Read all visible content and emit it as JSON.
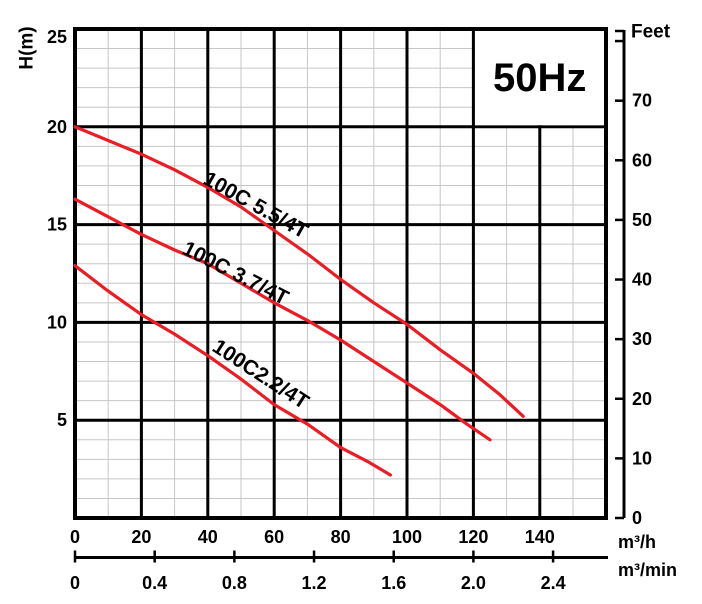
{
  "frequency_badge": {
    "label": "50Hz",
    "color": "#176aa5"
  },
  "axes": {
    "left": {
      "title": "H(m)",
      "ticks": [
        25,
        20,
        15,
        10,
        5
      ]
    },
    "right": {
      "title": "Feet",
      "ticks": [
        70,
        60,
        50,
        40,
        30,
        20,
        10,
        0
      ],
      "unlabeled_tick_feet": 80
    },
    "bottom_primary": {
      "unit": "m³/h",
      "ticks": [
        0,
        20,
        40,
        60,
        80,
        100,
        120,
        140
      ]
    },
    "bottom_secondary": {
      "unit": "m³/min",
      "ticks": [
        "0",
        "0.4",
        "0.8",
        "1.2",
        "1.6",
        "2.0",
        "2.4"
      ]
    }
  },
  "chart_data": {
    "type": "line",
    "title": "",
    "xlabel": "m³/h",
    "ylabel": "H(m)",
    "right_axis_label": "Feet",
    "xlim": [
      0,
      160
    ],
    "ylim": [
      0,
      25
    ],
    "right_ylim_feet": [
      0,
      82
    ],
    "secondary_x_unit": "m³/min",
    "secondary_x_ratio_note": "1 m³/min = 60 m³/h",
    "grid": {
      "x_major": 20,
      "x_minor": 10,
      "y_major": 5,
      "y_minor": 1,
      "on": true
    },
    "annotation": "50Hz",
    "curve_color": "#ec1c24",
    "series": [
      {
        "name": "100C 5.5/4T",
        "points": [
          [
            0,
            20
          ],
          [
            10,
            19.3
          ],
          [
            20,
            18.6
          ],
          [
            30,
            17.8
          ],
          [
            40,
            16.9
          ],
          [
            50,
            15.9
          ],
          [
            60,
            14.7
          ],
          [
            70,
            13.5
          ],
          [
            80,
            12.2
          ],
          [
            90,
            11.0
          ],
          [
            100,
            9.9
          ],
          [
            110,
            8.6
          ],
          [
            120,
            7.4
          ],
          [
            128,
            6.3
          ],
          [
            135,
            5.2
          ]
        ]
      },
      {
        "name": "100C 3.7/4T",
        "points": [
          [
            0,
            16.3
          ],
          [
            10,
            15.4
          ],
          [
            20,
            14.5
          ],
          [
            30,
            13.7
          ],
          [
            40,
            13.0
          ],
          [
            50,
            12.0
          ],
          [
            60,
            11.0
          ],
          [
            70,
            10.1
          ],
          [
            80,
            9.1
          ],
          [
            90,
            8.0
          ],
          [
            100,
            6.9
          ],
          [
            110,
            5.8
          ],
          [
            118,
            4.8
          ],
          [
            125,
            4.0
          ]
        ]
      },
      {
        "name": "100C2.2/4T",
        "points": [
          [
            0,
            12.9
          ],
          [
            10,
            11.6
          ],
          [
            20,
            10.4
          ],
          [
            30,
            9.4
          ],
          [
            40,
            8.3
          ],
          [
            50,
            7.1
          ],
          [
            60,
            5.8
          ],
          [
            70,
            4.8
          ],
          [
            80,
            3.6
          ],
          [
            88,
            2.9
          ],
          [
            95,
            2.2
          ]
        ]
      }
    ]
  }
}
